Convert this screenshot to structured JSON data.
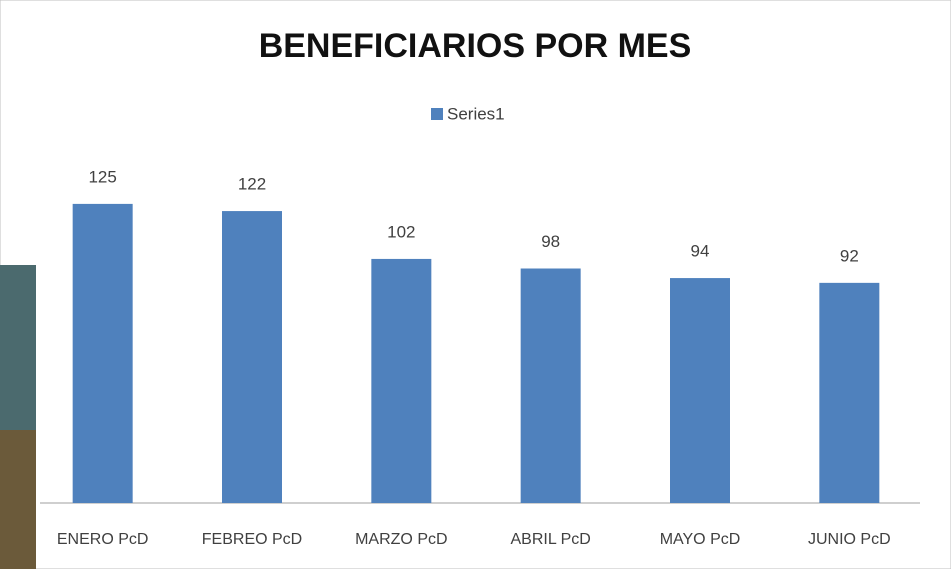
{
  "chart_data": {
    "type": "bar",
    "title": "BENEFICIARIOS POR MES",
    "categories": [
      "ENERO PcD",
      "FEBREO PcD",
      "MARZO PcD",
      "ABRIL PcD",
      "MAYO PcD",
      "JUNIO PcD"
    ],
    "series": [
      {
        "name": "Series1",
        "color": "#4f81bd",
        "values": [
          125,
          122,
          102,
          98,
          94,
          92
        ]
      }
    ],
    "ylim": [
      0,
      140
    ]
  }
}
